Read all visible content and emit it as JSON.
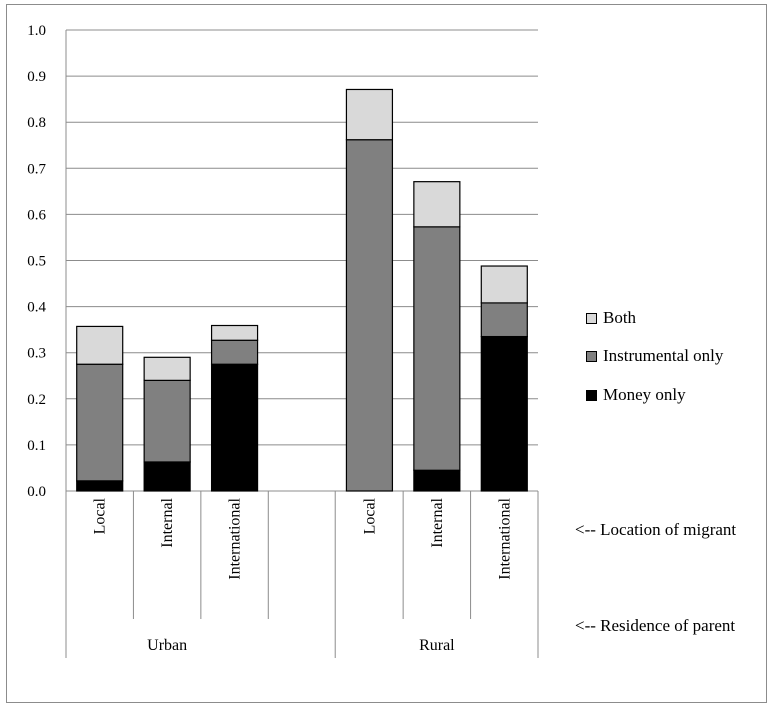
{
  "chart_data": {
    "type": "bar",
    "stacked": true,
    "groups": [
      {
        "label": "Urban",
        "categories": [
          "Local",
          "Internal",
          "International"
        ]
      },
      {
        "label": "Rural",
        "categories": [
          "Local",
          "Internal",
          "International"
        ]
      }
    ],
    "series": [
      {
        "name": "Money only",
        "color": "#000000",
        "values": [
          0.022,
          0.063,
          0.275,
          0.0,
          0.045,
          0.335
        ]
      },
      {
        "name": "Instrumental only",
        "color": "#808080",
        "values": [
          0.253,
          0.177,
          0.052,
          0.762,
          0.528,
          0.073
        ]
      },
      {
        "name": "Both",
        "color": "#d9d9d9",
        "values": [
          0.082,
          0.05,
          0.032,
          0.109,
          0.098,
          0.08
        ]
      }
    ],
    "ylim": [
      0,
      1.0
    ],
    "yticks": [
      "0.0",
      "0.1",
      "0.2",
      "0.3",
      "0.4",
      "0.5",
      "0.6",
      "0.7",
      "0.8",
      "0.9",
      "1.0"
    ],
    "grid": true,
    "legend_position": "right",
    "annotations": {
      "location": "<-- Location of migrant",
      "residence": "<--  Residence of parent"
    }
  }
}
